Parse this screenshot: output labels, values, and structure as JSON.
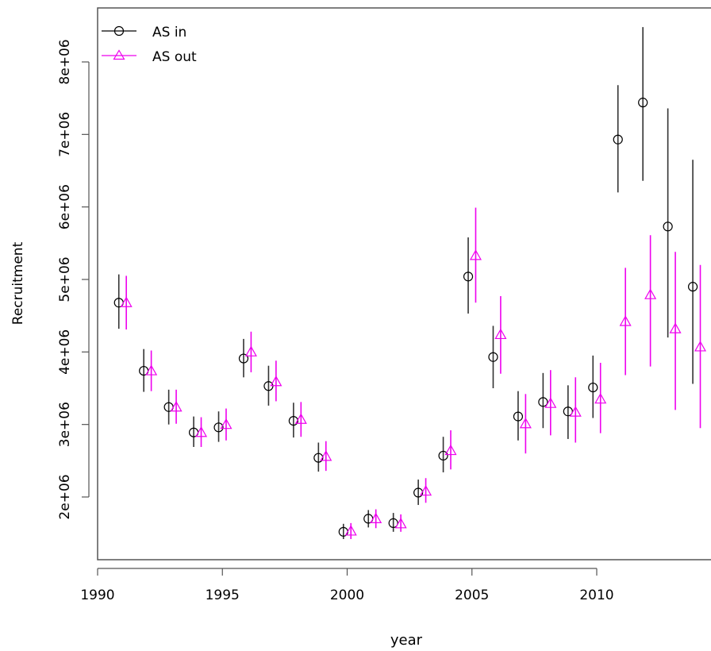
{
  "chart_data": {
    "type": "scatter",
    "title": "",
    "xlabel": "year",
    "ylabel": "Recruitment",
    "xlim": [
      1990,
      2014.5
    ],
    "ylim": [
      1100000,
      8800000
    ],
    "x_ticks": [
      1990,
      1995,
      2000,
      2005,
      2010
    ],
    "x_tick_labels": [
      "1990",
      "1995",
      "2000",
      "2005",
      "2010"
    ],
    "y_ticks": [
      2000000,
      3000000,
      4000000,
      5000000,
      6000000,
      7000000,
      8000000
    ],
    "y_tick_labels": [
      "2e+06",
      "3e+06",
      "4e+06",
      "5e+06",
      "6e+06",
      "7e+06",
      "8e+06"
    ],
    "grid": false,
    "legend_position": "top-left",
    "series": [
      {
        "name": "AS in",
        "marker": "circle",
        "color": "#000000",
        "error_color": "#333333",
        "x_offset": -0.15,
        "x": [
          1991,
          1992,
          1993,
          1994,
          1995,
          1996,
          1997,
          1998,
          1999,
          2000,
          2001,
          2002,
          2003,
          2004,
          2005,
          2006,
          2007,
          2008,
          2009,
          2010,
          2011,
          2012,
          2013,
          2014
        ],
        "y": [
          4680000,
          3740000,
          3240000,
          2890000,
          2960000,
          3910000,
          3530000,
          3050000,
          2540000,
          1520000,
          1700000,
          1640000,
          2060000,
          2570000,
          5040000,
          3930000,
          3110000,
          3310000,
          3180000,
          3510000,
          6930000,
          7440000,
          5730000,
          4900000
        ],
        "lower": [
          4320000,
          3450000,
          3000000,
          2690000,
          2760000,
          3650000,
          3260000,
          2820000,
          2350000,
          1420000,
          1580000,
          1520000,
          1890000,
          2340000,
          4530000,
          3500000,
          2780000,
          2950000,
          2800000,
          3090000,
          6200000,
          6360000,
          4200000,
          3560000
        ],
        "upper": [
          5070000,
          4040000,
          3480000,
          3110000,
          3180000,
          4180000,
          3810000,
          3300000,
          2750000,
          1630000,
          1820000,
          1780000,
          2240000,
          2830000,
          5580000,
          4360000,
          3460000,
          3710000,
          3540000,
          3950000,
          7680000,
          8480000,
          7360000,
          6650000
        ]
      },
      {
        "name": "AS out",
        "marker": "triangle",
        "color": "#ee00ee",
        "error_color": "#ee00ee",
        "x_offset": 0.15,
        "x": [
          1991,
          1992,
          1993,
          1994,
          1995,
          1996,
          1997,
          1998,
          1999,
          2000,
          2001,
          2002,
          2003,
          2004,
          2005,
          2006,
          2007,
          2008,
          2009,
          2010,
          2011,
          2012,
          2013,
          2014
        ],
        "y": [
          4680000,
          3740000,
          3240000,
          2890000,
          3000000,
          4000000,
          3590000,
          3070000,
          2560000,
          1530000,
          1700000,
          1630000,
          2080000,
          2640000,
          5330000,
          4240000,
          3010000,
          3290000,
          3170000,
          3350000,
          4420000,
          4790000,
          4320000,
          4070000
        ],
        "lower": [
          4310000,
          3460000,
          3010000,
          2690000,
          2780000,
          3720000,
          3320000,
          2830000,
          2360000,
          1420000,
          1570000,
          1520000,
          1920000,
          2380000,
          4680000,
          3700000,
          2600000,
          2850000,
          2750000,
          2880000,
          3680000,
          3800000,
          3200000,
          2950000
        ],
        "upper": [
          5050000,
          4020000,
          3480000,
          3100000,
          3220000,
          4280000,
          3880000,
          3310000,
          2770000,
          1640000,
          1830000,
          1760000,
          2260000,
          2920000,
          5990000,
          4770000,
          3420000,
          3750000,
          3650000,
          3850000,
          5160000,
          5610000,
          5380000,
          5200000
        ]
      }
    ]
  }
}
